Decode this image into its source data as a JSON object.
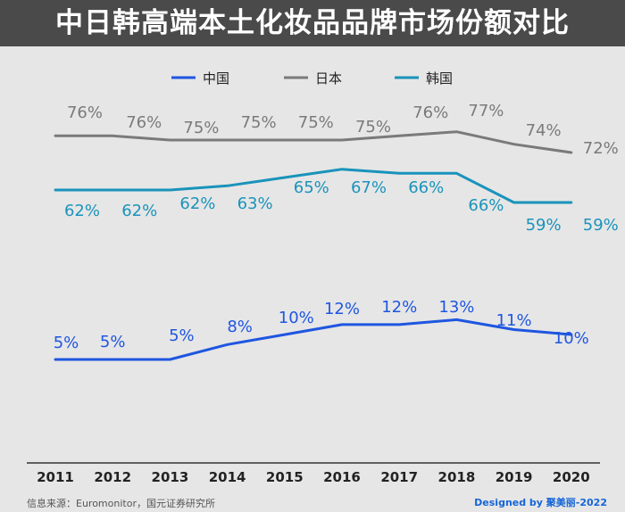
{
  "title": "中日韩高端本土化妆品品牌市场份额对比",
  "footer": {
    "source": "信息来源：Euromonitor，国元证券研究所",
    "credit": "Designed by 聚美丽-2022"
  },
  "colors": {
    "china": "#1f56e0",
    "japan": "#7a7a7a",
    "korea": "#1a93bb",
    "axis": "#333333"
  },
  "chart_data": {
    "type": "line",
    "title": "中日韩高端本土化妆品品牌市场份额对比",
    "xlabel": "",
    "ylabel": "",
    "ylim": [
      0,
      80
    ],
    "grid": false,
    "legend": "top-center",
    "categories": [
      "2011",
      "2012",
      "2013",
      "2014",
      "2015",
      "2016",
      "2017",
      "2018",
      "2019",
      "2020"
    ],
    "series": [
      {
        "name": "中国",
        "color": "#1f56e0",
        "values": [
          5,
          5,
          5,
          8,
          10,
          12,
          12,
          13,
          11,
          10
        ],
        "labels": [
          "5%",
          "5%",
          "5%",
          "8%",
          "10%",
          "12%",
          "12%",
          "13%",
          "11%",
          "10%"
        ]
      },
      {
        "name": "日本",
        "color": "#7a7a7a",
        "values": [
          76,
          76,
          75,
          75,
          75,
          75,
          76,
          77,
          74,
          72
        ],
        "labels": [
          "76%",
          "76%",
          "75%",
          "75%",
          "75%",
          "75%",
          "76%",
          "77%",
          "74%",
          "72%"
        ]
      },
      {
        "name": "韩国",
        "color": "#1a93bb",
        "values": [
          62,
          62,
          62,
          63,
          65,
          67,
          66,
          66,
          59,
          59
        ],
        "labels": [
          "62%",
          "62%",
          "62%",
          "63%",
          "65%",
          "67%",
          "66%",
          "66%",
          "59%",
          "59%"
        ]
      }
    ]
  }
}
